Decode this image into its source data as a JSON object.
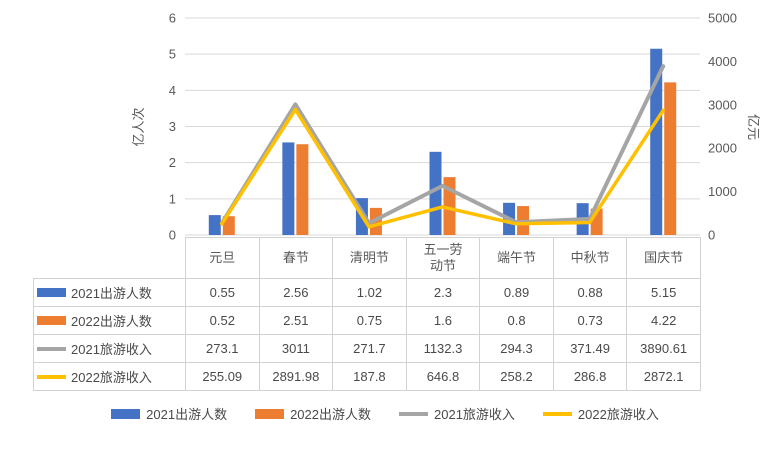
{
  "chart_data": {
    "type": "combo",
    "categories": [
      "元旦",
      "春节",
      "清明节",
      "五一劳动节",
      "端午节",
      "中秋节",
      "国庆节"
    ],
    "series": [
      {
        "name": "2021出游人数",
        "type": "bar",
        "axis": "left",
        "color": "#4472C4",
        "values": [
          0.55,
          2.56,
          1.02,
          2.3,
          0.89,
          0.88,
          5.15
        ]
      },
      {
        "name": "2022出游人数",
        "type": "bar",
        "axis": "left",
        "color": "#ED7D31",
        "values": [
          0.52,
          2.51,
          0.75,
          1.6,
          0.8,
          0.73,
          4.22
        ]
      },
      {
        "name": "2021旅游收入",
        "type": "line",
        "axis": "right",
        "color": "#A5A5A5",
        "values": [
          273.1,
          3011,
          271.7,
          1132.3,
          294.3,
          371.49,
          3890.61
        ]
      },
      {
        "name": "2022旅游收入",
        "type": "line",
        "axis": "right",
        "color": "#FFC000",
        "values": [
          255.09,
          2891.98,
          187.8,
          646.8,
          258.2,
          286.8,
          2872.1
        ]
      }
    ],
    "left_axis": {
      "label": "亿人次",
      "min": 0,
      "max": 6,
      "ticks": [
        0,
        1,
        2,
        3,
        4,
        5,
        6
      ]
    },
    "right_axis": {
      "label": "亿元",
      "min": 0,
      "max": 5000,
      "ticks": [
        0,
        1000,
        2000,
        3000,
        4000,
        5000
      ]
    },
    "legend_position": "bottom",
    "grid": true,
    "gridline_color": "#D9D9D9",
    "tick_label_color": "#595959"
  }
}
